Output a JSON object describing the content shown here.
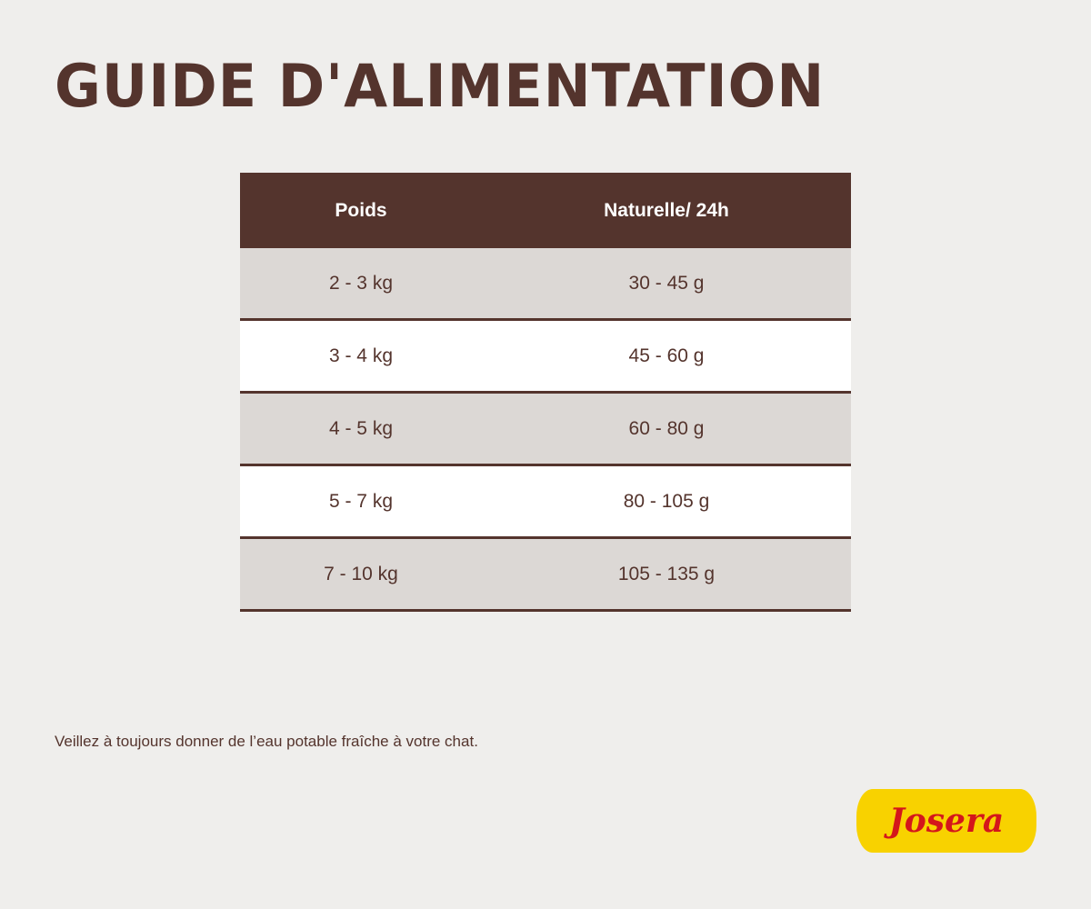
{
  "title": "Guide d'alimentation",
  "table": {
    "headers": [
      "Poids",
      "Naturelle/ 24h"
    ],
    "rows": [
      [
        "2 - 3 kg",
        "30 - 45 g"
      ],
      [
        "3 - 4 kg",
        "45 - 60 g"
      ],
      [
        "4 - 5 kg",
        "60 - 80 g"
      ],
      [
        "5 - 7 kg",
        "80 - 105 g"
      ],
      [
        "7 - 10 kg",
        "105 - 135 g"
      ]
    ]
  },
  "note": "Veillez à toujours donner de l’eau potable fraîche à votre chat.",
  "logo": {
    "text": "Josera",
    "bg_color": "#f8d200",
    "text_color": "#d4161b"
  },
  "colors": {
    "brown": "#54342d",
    "row_alt": "#dcd8d5"
  }
}
